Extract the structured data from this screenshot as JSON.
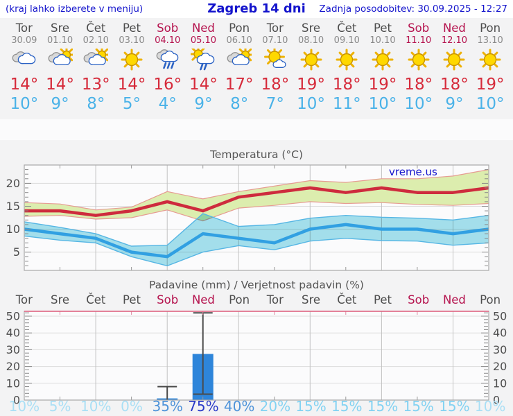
{
  "header": {
    "left_note": "(kraj lahko izberete v meniju)",
    "title": "Zagreb 14 dni",
    "updated": "Zadnja posodobitev: 30.09.2025 - 12:27"
  },
  "colors": {
    "header_blue": "#1414cc",
    "weekday": "#4d4d4d",
    "weekend": "#b5134e",
    "date_gray": "#8a8a8a",
    "tmax_red": "#d62b3b",
    "tmin_blue": "#4ab2e8"
  },
  "days": [
    {
      "name": "Tor",
      "date": "30.09",
      "weekend": false,
      "icon": "cloudy",
      "tmax": "14°",
      "tmin": "10°"
    },
    {
      "name": "Sre",
      "date": "01.10",
      "weekend": false,
      "icon": "partly-sunny",
      "tmax": "14°",
      "tmin": "9°"
    },
    {
      "name": "Čet",
      "date": "02.10",
      "weekend": false,
      "icon": "partly-sunny",
      "tmax": "13°",
      "tmin": "8°"
    },
    {
      "name": "Pet",
      "date": "03.10",
      "weekend": false,
      "icon": "sunny",
      "tmax": "14°",
      "tmin": "5°"
    },
    {
      "name": "Sob",
      "date": "04.10",
      "weekend": true,
      "icon": "rain",
      "tmax": "16°",
      "tmin": "4°"
    },
    {
      "name": "Ned",
      "date": "05.10",
      "weekend": true,
      "icon": "sun-rain",
      "tmax": "14°",
      "tmin": "9°"
    },
    {
      "name": "Pon",
      "date": "06.10",
      "weekend": false,
      "icon": "partly-sunny",
      "tmax": "17°",
      "tmin": "8°"
    },
    {
      "name": "Tor",
      "date": "07.10",
      "weekend": false,
      "icon": "mostly-sunny",
      "tmax": "18°",
      "tmin": "7°"
    },
    {
      "name": "Sre",
      "date": "08.10",
      "weekend": false,
      "icon": "sunny",
      "tmax": "19°",
      "tmin": "10°"
    },
    {
      "name": "Čet",
      "date": "09.10",
      "weekend": false,
      "icon": "sunny",
      "tmax": "18°",
      "tmin": "11°"
    },
    {
      "name": "Pet",
      "date": "10.10",
      "weekend": false,
      "icon": "sunny",
      "tmax": "19°",
      "tmin": "10°"
    },
    {
      "name": "Sob",
      "date": "11.10",
      "weekend": true,
      "icon": "sunny",
      "tmax": "18°",
      "tmin": "10°"
    },
    {
      "name": "Ned",
      "date": "12.10",
      "weekend": true,
      "icon": "sunny",
      "tmax": "18°",
      "tmin": "9°"
    },
    {
      "name": "Pon",
      "date": "13.10",
      "weekend": false,
      "icon": "sunny",
      "tmax": "19°",
      "tmin": "10°"
    }
  ],
  "chart_data": [
    {
      "type": "line",
      "title": "Temperatura (°C)",
      "watermark": "vreme.us",
      "categories": [
        "Tor 30.09",
        "Sre 01.10",
        "Čet 02.10",
        "Pet 03.10",
        "Sob 04.10",
        "Ned 05.10",
        "Pon 06.10",
        "Tor 07.10",
        "Sre 08.10",
        "Čet 09.10",
        "Pet 10.10",
        "Sob 11.10",
        "Ned 12.10",
        "Pon 13.10"
      ],
      "ylim": [
        1,
        24
      ],
      "yticks": [
        5,
        10,
        15,
        20
      ],
      "grid_every_days": 2,
      "series": [
        {
          "name": "max_temp",
          "color": "#ce2b3d",
          "band_color": "#dcedae",
          "band_edge": "#e69c92",
          "values": [
            14,
            14,
            13,
            14,
            16,
            14,
            17,
            18,
            19,
            18,
            19,
            18,
            18,
            19
          ],
          "band_upper": [
            15.8,
            15.5,
            14.2,
            14.8,
            18.2,
            16.6,
            18.2,
            19.4,
            20.6,
            20.2,
            21,
            21,
            21.6,
            23
          ],
          "band_lower": [
            12.8,
            13,
            12.2,
            12.5,
            14.2,
            11.8,
            14.6,
            15.2,
            16,
            15.6,
            15.8,
            15.4,
            15.2,
            15.6
          ]
        },
        {
          "name": "min_temp",
          "color": "#31a0e2",
          "band_color": "#a6e2ee",
          "band_edge": "#56b6e4",
          "values": [
            10,
            9,
            8,
            5,
            4,
            9,
            8,
            7,
            10,
            11,
            10,
            10,
            9,
            10
          ],
          "band_upper": [
            11.6,
            10.4,
            9,
            6.3,
            6.5,
            13.4,
            10.6,
            11,
            12.4,
            13,
            12.6,
            12.4,
            12,
            13
          ],
          "band_lower": [
            8.5,
            7.6,
            7,
            4,
            2,
            5,
            6.4,
            5.5,
            7.4,
            8,
            7.5,
            7.4,
            6.5,
            7
          ]
        }
      ]
    },
    {
      "type": "bar",
      "title": "Padavine (mm) / Verjetnost padavin (%)",
      "categories": [
        "Tor",
        "Sre",
        "Čet",
        "Pet",
        "Sob",
        "Ned",
        "Pon",
        "Tor",
        "Sre",
        "Čet",
        "Pet",
        "Sob",
        "Ned",
        "Pon"
      ],
      "ylim": [
        0,
        53
      ],
      "yticks": [
        0,
        10,
        20,
        30,
        40,
        50
      ],
      "bar_color": "#2e85da",
      "values_mm": [
        0,
        0,
        0,
        0,
        1,
        27.5,
        0,
        0,
        0,
        0,
        0,
        0,
        0,
        0
      ],
      "whiskers": [
        {
          "day_index": 4,
          "low": 0,
          "high": 8
        },
        {
          "day_index": 5,
          "low": 3.5,
          "high": 52
        }
      ],
      "probabilities": [
        "10%",
        "5%",
        "10%",
        "0%",
        "35%",
        "75%",
        "40%",
        "20%",
        "15%",
        "15%",
        "15%",
        "15%",
        "15%",
        "10%"
      ],
      "prob_colors": [
        "#a9dff5",
        "#a9dff5",
        "#a9dff5",
        "#a9dff5",
        "#4e93d9",
        "#2a3bc8",
        "#4e93d9",
        "#82d2f2",
        "#82d2f2",
        "#82d2f2",
        "#82d2f2",
        "#82d2f2",
        "#82d2f2",
        "#a9dff5"
      ]
    }
  ]
}
